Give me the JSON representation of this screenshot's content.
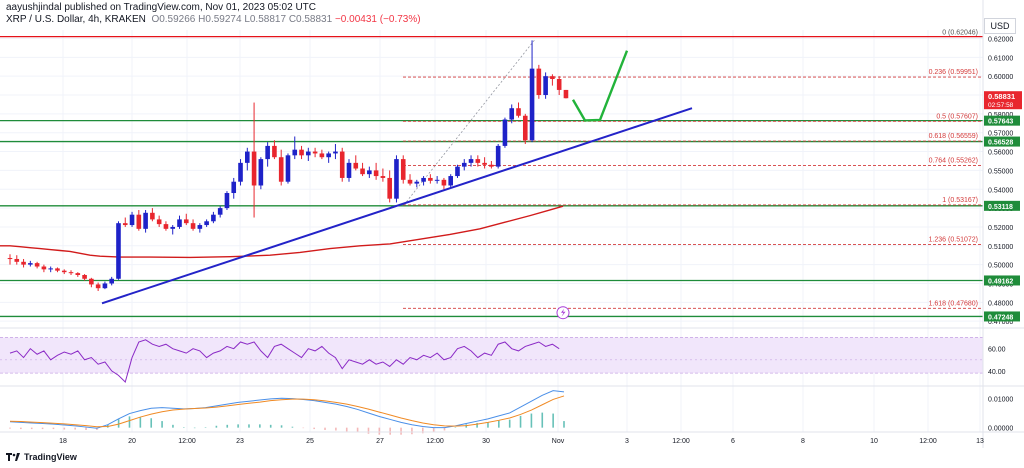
{
  "header": {
    "author_line": "aayushjindal published on TradingView.com, Nov 01, 2023 05:02 UTC",
    "symbol": "XRP / U.S. Dollar, 4h, KRAKEN",
    "o": "O0.59266",
    "h": "H0.59274",
    "l": "L0.58817",
    "c": "C0.58831",
    "chg": "−0.00431 (−0.73%)"
  },
  "currency_button": "USD",
  "footer": {
    "logo_text": "TradingView"
  },
  "colors": {
    "up": "#1e22c8",
    "down": "#e8262e",
    "trendline": "#2323c8",
    "ma": "#d11b1b",
    "support": "#1f8c3a",
    "resistance": "#e5121a",
    "arrow": "#22b33a",
    "fib": "#d33b3b",
    "rsi": "#8b2bc6",
    "macd": "#4a8fe8",
    "signal": "#f08a24"
  },
  "chart_data": {
    "type": "candlestick",
    "ylim": [
      0.4685,
      0.6245
    ],
    "y_ticks": [
      0.47,
      0.48,
      0.49,
      0.5,
      0.51,
      0.52,
      0.53,
      0.54,
      0.55,
      0.56,
      0.57,
      0.58,
      0.59,
      0.6,
      0.61,
      0.62
    ],
    "y_tick_labels": [
      "0.47000",
      "0.48000",
      "0.49000",
      "0.50000",
      "0.51000",
      "0.52000",
      "0.53000",
      "0.54000",
      "0.55000",
      "0.56000",
      "0.57000",
      "0.58000",
      "0.59000",
      "0.60000",
      "0.61000",
      "0.62000"
    ],
    "x_ticks": [
      {
        "label": "18",
        "x": 63
      },
      {
        "label": "20",
        "x": 132
      },
      {
        "label": "12:00",
        "x": 187
      },
      {
        "label": "23",
        "x": 240
      },
      {
        "label": "25",
        "x": 310
      },
      {
        "label": "27",
        "x": 380
      },
      {
        "label": "12:00",
        "x": 435
      },
      {
        "label": "30",
        "x": 486
      },
      {
        "label": "Nov",
        "x": 558
      },
      {
        "label": "3",
        "x": 627
      },
      {
        "label": "12:00",
        "x": 681
      },
      {
        "label": "6",
        "x": 733
      },
      {
        "label": "8",
        "x": 803
      },
      {
        "label": "10",
        "x": 874
      },
      {
        "label": "12:00",
        "x": 928
      },
      {
        "label": "13",
        "x": 980
      }
    ],
    "candles": [
      [
        0.5035,
        0.5055,
        0.5,
        0.503
      ],
      [
        0.503,
        0.505,
        0.5,
        0.5015
      ],
      [
        0.5015,
        0.503,
        0.4985,
        0.5
      ],
      [
        0.5,
        0.502,
        0.499,
        0.5008
      ],
      [
        0.5008,
        0.5015,
        0.498,
        0.499
      ],
      [
        0.499,
        0.5,
        0.496,
        0.4975
      ],
      [
        0.4975,
        0.499,
        0.496,
        0.498
      ],
      [
        0.498,
        0.4985,
        0.496,
        0.4968
      ],
      [
        0.4968,
        0.4975,
        0.495,
        0.496
      ],
      [
        0.496,
        0.497,
        0.4945,
        0.4955
      ],
      [
        0.4955,
        0.496,
        0.4935,
        0.4945
      ],
      [
        0.4945,
        0.495,
        0.4915,
        0.4925
      ],
      [
        0.4925,
        0.493,
        0.488,
        0.4895
      ],
      [
        0.4895,
        0.4905,
        0.486,
        0.4875
      ],
      [
        0.4875,
        0.491,
        0.487,
        0.49
      ],
      [
        0.49,
        0.4935,
        0.489,
        0.4925
      ],
      [
        0.4925,
        0.523,
        0.492,
        0.522
      ],
      [
        0.522,
        0.525,
        0.52,
        0.521
      ],
      [
        0.521,
        0.528,
        0.52,
        0.5265
      ],
      [
        0.5265,
        0.529,
        0.518,
        0.519
      ],
      [
        0.519,
        0.529,
        0.517,
        0.5275
      ],
      [
        0.5275,
        0.53,
        0.523,
        0.524
      ],
      [
        0.524,
        0.526,
        0.52,
        0.5215
      ],
      [
        0.5215,
        0.523,
        0.518,
        0.519
      ],
      [
        0.519,
        0.521,
        0.516,
        0.52
      ],
      [
        0.52,
        0.526,
        0.519,
        0.524
      ],
      [
        0.524,
        0.527,
        0.521,
        0.522
      ],
      [
        0.522,
        0.524,
        0.518,
        0.519
      ],
      [
        0.519,
        0.522,
        0.517,
        0.521
      ],
      [
        0.521,
        0.524,
        0.52,
        0.523
      ],
      [
        0.523,
        0.528,
        0.522,
        0.5265
      ],
      [
        0.5265,
        0.531,
        0.525,
        0.53
      ],
      [
        0.53,
        0.539,
        0.529,
        0.538
      ],
      [
        0.538,
        0.546,
        0.535,
        0.544
      ],
      [
        0.544,
        0.556,
        0.542,
        0.554
      ],
      [
        0.554,
        0.562,
        0.55,
        0.56
      ],
      [
        0.56,
        0.586,
        0.525,
        0.542
      ],
      [
        0.542,
        0.557,
        0.54,
        0.556
      ],
      [
        0.556,
        0.565,
        0.552,
        0.563
      ],
      [
        0.563,
        0.566,
        0.556,
        0.557
      ],
      [
        0.557,
        0.561,
        0.542,
        0.544
      ],
      [
        0.544,
        0.559,
        0.543,
        0.558
      ],
      [
        0.558,
        0.568,
        0.556,
        0.561
      ],
      [
        0.561,
        0.563,
        0.556,
        0.558
      ],
      [
        0.558,
        0.562,
        0.555,
        0.56
      ],
      [
        0.56,
        0.562,
        0.557,
        0.559
      ],
      [
        0.559,
        0.561,
        0.556,
        0.557
      ],
      [
        0.557,
        0.56,
        0.554,
        0.559
      ],
      [
        0.559,
        0.564,
        0.556,
        0.56
      ],
      [
        0.56,
        0.562,
        0.544,
        0.546
      ],
      [
        0.546,
        0.556,
        0.544,
        0.554
      ],
      [
        0.554,
        0.558,
        0.55,
        0.551
      ],
      [
        0.551,
        0.554,
        0.547,
        0.548
      ],
      [
        0.548,
        0.552,
        0.546,
        0.55
      ],
      [
        0.55,
        0.554,
        0.545,
        0.547
      ],
      [
        0.547,
        0.551,
        0.544,
        0.546
      ],
      [
        0.546,
        0.55,
        0.533,
        0.535
      ],
      [
        0.535,
        0.558,
        0.533,
        0.556
      ],
      [
        0.556,
        0.558,
        0.543,
        0.545
      ],
      [
        0.545,
        0.548,
        0.542,
        0.543
      ],
      [
        0.543,
        0.545,
        0.541,
        0.544
      ],
      [
        0.544,
        0.547,
        0.542,
        0.546
      ],
      [
        0.546,
        0.548,
        0.543,
        0.5445
      ],
      [
        0.5445,
        0.547,
        0.543,
        0.545
      ],
      [
        0.545,
        0.546,
        0.54,
        0.542
      ],
      [
        0.542,
        0.548,
        0.541,
        0.547
      ],
      [
        0.547,
        0.553,
        0.546,
        0.552
      ],
      [
        0.552,
        0.556,
        0.55,
        0.554
      ],
      [
        0.554,
        0.558,
        0.552,
        0.556
      ],
      [
        0.556,
        0.558,
        0.552,
        0.554
      ],
      [
        0.554,
        0.557,
        0.551,
        0.553
      ],
      [
        0.553,
        0.555,
        0.551,
        0.552
      ],
      [
        0.552,
        0.564,
        0.551,
        0.563
      ],
      [
        0.563,
        0.578,
        0.562,
        0.577
      ],
      [
        0.577,
        0.585,
        0.575,
        0.583
      ],
      [
        0.583,
        0.586,
        0.578,
        0.579
      ],
      [
        0.579,
        0.58,
        0.564,
        0.566
      ],
      [
        0.566,
        0.619,
        0.565,
        0.604
      ],
      [
        0.604,
        0.606,
        0.588,
        0.59
      ],
      [
        0.59,
        0.602,
        0.588,
        0.6
      ],
      [
        0.6,
        0.601,
        0.595,
        0.5985
      ],
      [
        0.5985,
        0.6,
        0.59,
        0.5927
      ],
      [
        0.5927,
        0.5927,
        0.5882,
        0.5883
      ]
    ],
    "ma": [
      0.51,
      0.51,
      0.5095,
      0.509,
      0.5085,
      0.508,
      0.5075,
      0.507,
      0.506,
      0.505,
      0.5045,
      0.504,
      0.504,
      0.5038,
      0.5042,
      0.505,
      0.5065,
      0.5085,
      0.51,
      0.511,
      0.5135,
      0.516,
      0.519,
      0.5225,
      0.526,
      0.529,
      0.531
    ],
    "ma_x": [
      0,
      10,
      20,
      30,
      40,
      50,
      60,
      70,
      80,
      90,
      100,
      120,
      150,
      190,
      230,
      270,
      300,
      330,
      360,
      390,
      420,
      450,
      480,
      505,
      530,
      550,
      563
    ],
    "price_label": {
      "value": "0.58831",
      "sub": "02:57:58"
    },
    "levels": [
      {
        "id": "resistance-062",
        "price": 0.621,
        "label": "",
        "color": "resistance"
      },
      {
        "id": "support-05764",
        "price": 0.5764,
        "label": "0.57643",
        "color": "support"
      },
      {
        "id": "support-05653",
        "price": 0.5653,
        "label": "0.56528",
        "color": "support"
      },
      {
        "id": "support-05312",
        "price": 0.5312,
        "label": "0.53118",
        "color": "support"
      },
      {
        "id": "support-04916",
        "price": 0.4916,
        "label": "0.49162",
        "color": "support"
      },
      {
        "id": "support-04725",
        "price": 0.4725,
        "label": "0.47248",
        "color": "support"
      }
    ],
    "fib": [
      {
        "ratio": "0",
        "price": 0.62046,
        "label": "0 (0.62046)"
      },
      {
        "ratio": "0.236",
        "price": 0.59951,
        "label": "0.236 (0.59951)"
      },
      {
        "ratio": "0.5",
        "price": 0.57607,
        "label": "0.5 (0.57607)"
      },
      {
        "ratio": "0.618",
        "price": 0.56559,
        "label": "0.618 (0.56559)"
      },
      {
        "ratio": "0.764",
        "price": 0.55262,
        "label": "0.764 (0.55262)"
      },
      {
        "ratio": "1",
        "price": 0.53167,
        "label": "1 (0.53167)"
      },
      {
        "ratio": "1.236",
        "price": 0.51072,
        "label": "1.236 (0.51072)"
      },
      {
        "ratio": "1.618",
        "price": 0.4768,
        "label": "1.618 (0.47680)"
      }
    ],
    "trendline": {
      "from": [
        0.4795
      ],
      "to": [
        0.583
      ]
    },
    "rsi": {
      "ylim": [
        30,
        75
      ],
      "ticks": [
        60,
        40
      ],
      "tick_labels": [
        "60.00",
        "40.00"
      ],
      "band": [
        38,
        70
      ],
      "values": [
        56,
        58,
        52,
        60,
        55,
        58,
        50,
        54,
        57,
        55,
        58,
        50,
        52,
        46,
        48,
        40,
        36,
        30,
        52,
        66,
        68,
        64,
        62,
        64,
        60,
        58,
        56,
        60,
        58,
        52,
        56,
        58,
        62,
        60,
        66,
        64,
        66,
        58,
        52,
        62,
        64,
        60,
        56,
        52,
        60,
        58,
        62,
        56,
        52,
        42,
        50,
        48,
        46,
        50,
        46,
        48,
        44,
        50,
        46,
        52,
        50,
        54,
        52,
        56,
        50,
        52,
        60,
        62,
        58,
        52,
        56,
        54,
        64,
        66,
        60,
        58,
        62,
        64,
        66,
        62,
        64,
        60
      ]
    },
    "macd": {
      "ylim": [
        -0.0008,
        0.0135
      ],
      "ticks": [
        0.01,
        0.0
      ],
      "tick_labels": [
        "0.01000",
        "0.00000"
      ],
      "macd": [
        0.002,
        0.0018,
        0.0016,
        0.0014,
        0.0012,
        0.0009,
        0.0006,
        0.0002,
        -0.0002,
        0.001,
        0.003,
        0.0048,
        0.0058,
        0.0066,
        0.0068,
        0.0066,
        0.0064,
        0.0065,
        0.0068,
        0.0074,
        0.008,
        0.0086,
        0.009,
        0.0094,
        0.0098,
        0.01,
        0.0099,
        0.0096,
        0.0092,
        0.0086,
        0.008,
        0.0072,
        0.0062,
        0.005,
        0.0038,
        0.0028,
        0.0018,
        0.001,
        0.0004,
        0.0,
        0.0,
        0.0006,
        0.0014,
        0.0022,
        0.003,
        0.004,
        0.005,
        0.007,
        0.009,
        0.011,
        0.0126,
        0.0122
      ],
      "signal": [
        0.0022,
        0.0021,
        0.0019,
        0.0017,
        0.0015,
        0.0013,
        0.001,
        0.0007,
        0.0003,
        0.0004,
        0.0012,
        0.0024,
        0.0036,
        0.0046,
        0.0054,
        0.006,
        0.0063,
        0.0065,
        0.0067,
        0.007,
        0.0074,
        0.0079,
        0.0083,
        0.0087,
        0.0092,
        0.0095,
        0.0097,
        0.0097,
        0.0095,
        0.0091,
        0.0086,
        0.008,
        0.0072,
        0.0063,
        0.0053,
        0.0043,
        0.0033,
        0.0024,
        0.0016,
        0.001,
        0.0006,
        0.0005,
        0.0007,
        0.0012,
        0.0018,
        0.0025,
        0.0033,
        0.0045,
        0.006,
        0.0078,
        0.0096,
        0.0108
      ]
    }
  }
}
